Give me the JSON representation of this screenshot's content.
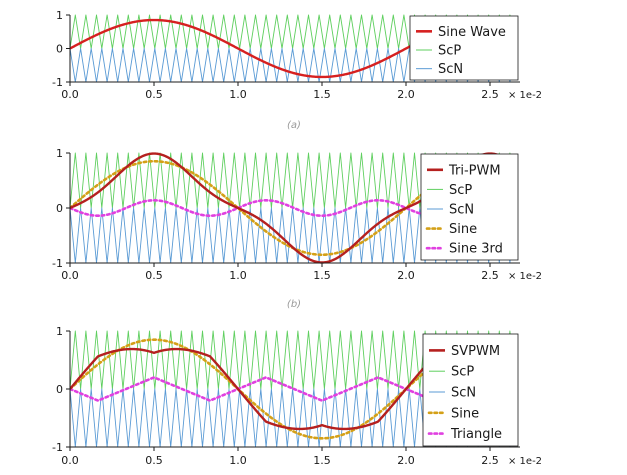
{
  "chart_data": [
    {
      "type": "line",
      "caption": "(a)",
      "xlim": [
        0,
        2.5
      ],
      "ylim": [
        -1,
        1
      ],
      "x_ticks": [
        "0.0",
        "0.5",
        "1.0",
        "1.5",
        "2.0",
        "2.5"
      ],
      "y_ticks": [
        "1",
        "0",
        "-1"
      ],
      "x_scale_label": "× 1e-2",
      "x_unit_scale": 0.01,
      "grid": false,
      "legend_position": "top-right",
      "carrier_periods": 42,
      "series": [
        {
          "name": "Sine Wave",
          "kind": "sine",
          "amplitude": 0.85,
          "frequency_per_unit": 0.5,
          "color": "#d62020",
          "style": "solid"
        },
        {
          "name": "ScP",
          "kind": "carrier_pos",
          "color": "#5fcf5f",
          "style": "solid"
        },
        {
          "name": "ScN",
          "kind": "carrier_neg",
          "color": "#5b9bd5",
          "style": "solid"
        }
      ]
    },
    {
      "type": "line",
      "caption": "(b)",
      "xlim": [
        0,
        2.5
      ],
      "ylim": [
        -1,
        1
      ],
      "x_ticks": [
        "0.0",
        "0.5",
        "1.0",
        "1.5",
        "2.0",
        "2.5"
      ],
      "y_ticks": [
        "1",
        "0",
        "-1"
      ],
      "x_scale_label": "× 1e-2",
      "x_unit_scale": 0.01,
      "grid": false,
      "legend_position": "top-right",
      "carrier_periods": 42,
      "series": [
        {
          "name": "Tri-PWM",
          "kind": "sine_minus_third",
          "amplitude": 0.85,
          "third_amplitude": 0.14,
          "color": "#b5201f",
          "style": "solid"
        },
        {
          "name": "ScP",
          "kind": "carrier_pos",
          "color": "#5fcf5f",
          "style": "solid"
        },
        {
          "name": "ScN",
          "kind": "carrier_neg",
          "color": "#5b9bd5",
          "style": "solid"
        },
        {
          "name": "Sine",
          "kind": "sine",
          "amplitude": 0.85,
          "color": "#d4a017",
          "style": "dotted"
        },
        {
          "name": "Sine 3rd",
          "kind": "third",
          "amplitude": 0.14,
          "color": "#e040e0",
          "style": "dotted"
        }
      ]
    },
    {
      "type": "line",
      "caption": "",
      "xlim": [
        0,
        2.5
      ],
      "ylim": [
        -1,
        1
      ],
      "x_ticks": [
        "0.0",
        "0.5",
        "1.0",
        "1.5",
        "2.0",
        "2.5"
      ],
      "y_ticks": [
        "1",
        "0",
        "-1"
      ],
      "x_scale_label": "× 1e-2",
      "x_unit_scale": 0.01,
      "grid": false,
      "legend_position": "top-right",
      "carrier_periods": 42,
      "series": [
        {
          "name": "SVPWM",
          "kind": "sine_minus_triangle",
          "amplitude": 0.85,
          "third_amplitude": 0.2,
          "color": "#b5201f",
          "style": "solid"
        },
        {
          "name": "ScP",
          "kind": "carrier_pos",
          "color": "#5fcf5f",
          "style": "solid"
        },
        {
          "name": "ScN",
          "kind": "carrier_neg",
          "color": "#5b9bd5",
          "style": "solid"
        },
        {
          "name": "Sine",
          "kind": "sine",
          "amplitude": 0.85,
          "color": "#d4a017",
          "style": "dotted"
        },
        {
          "name": "Triangle",
          "kind": "triangle",
          "amplitude": 0.2,
          "color": "#e040e0",
          "style": "dotted"
        }
      ]
    }
  ]
}
